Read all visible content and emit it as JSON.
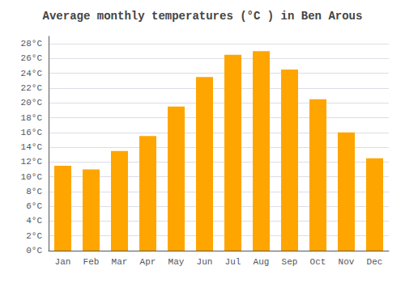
{
  "chart_data": {
    "type": "bar",
    "title": "Average monthly temperatures (°C ) in Ben Arous",
    "categories": [
      "Jan",
      "Feb",
      "Mar",
      "Apr",
      "May",
      "Jun",
      "Jul",
      "Aug",
      "Sep",
      "Oct",
      "Nov",
      "Dec"
    ],
    "values": [
      11.5,
      11.0,
      13.5,
      15.5,
      19.5,
      23.5,
      26.5,
      27.0,
      24.5,
      20.5,
      16.0,
      12.5
    ],
    "color": "#FFA500",
    "ylim": [
      0,
      29
    ],
    "yticks": [
      {
        "value": 0,
        "label": "0°C"
      },
      {
        "value": 2,
        "label": "2°C"
      },
      {
        "value": 4,
        "label": "4°C"
      },
      {
        "value": 6,
        "label": "6°C"
      },
      {
        "value": 8,
        "label": "8°C"
      },
      {
        "value": 10,
        "label": "10°C"
      },
      {
        "value": 12,
        "label": "12°C"
      },
      {
        "value": 14,
        "label": "14°C"
      },
      {
        "value": 16,
        "label": "16°C"
      },
      {
        "value": 18,
        "label": "18°C"
      },
      {
        "value": 20,
        "label": "20°C"
      },
      {
        "value": 22,
        "label": "22°C"
      },
      {
        "value": 24,
        "label": "24°C"
      },
      {
        "value": 26,
        "label": "26°C"
      },
      {
        "value": 28,
        "label": "28°C"
      }
    ],
    "grid": true
  }
}
